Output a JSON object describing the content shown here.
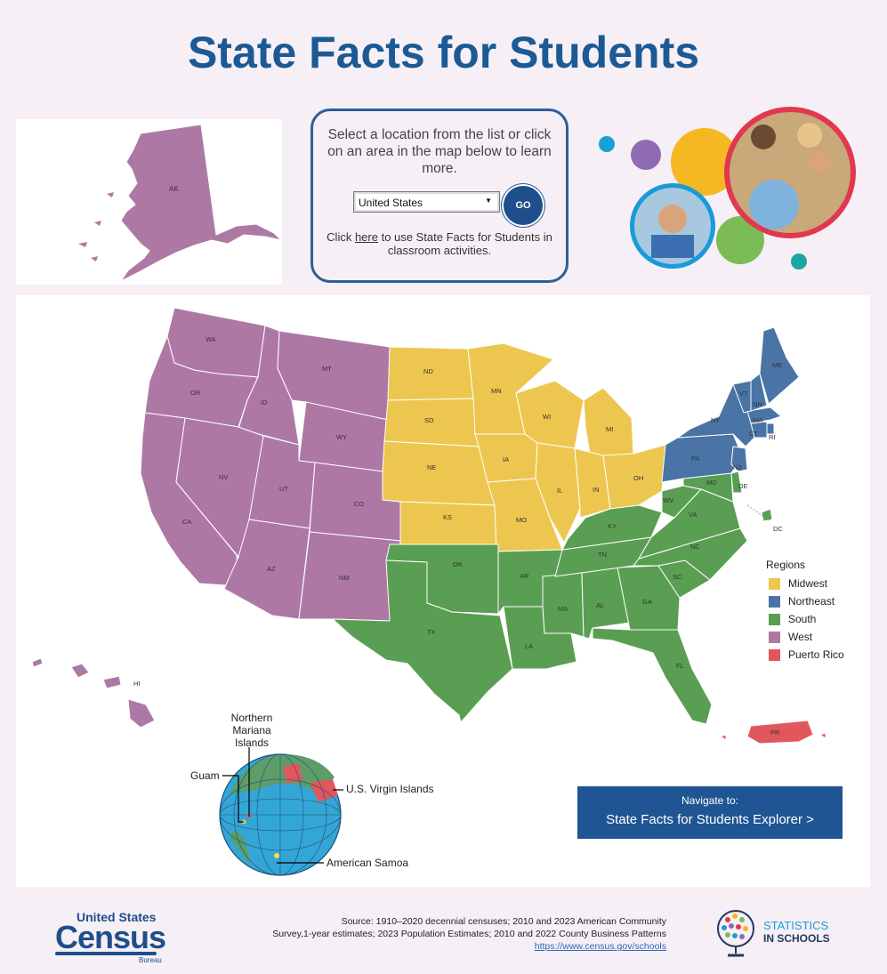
{
  "page": {
    "title": "State Facts for Students"
  },
  "selector": {
    "prompt": "Select a location from the list or click on an area in the map below to learn more.",
    "selected": "United States",
    "go_label": "GO",
    "classroom_before": "Click ",
    "classroom_link": "here",
    "classroom_after": " to use State Facts for Students in classroom activities."
  },
  "map": {
    "state_labels": [
      "AK",
      "WA",
      "OR",
      "CA",
      "ID",
      "NV",
      "MT",
      "WY",
      "UT",
      "AZ",
      "CO",
      "NM",
      "ND",
      "SD",
      "NE",
      "KS",
      "OK",
      "TX",
      "MN",
      "IA",
      "MO",
      "AR",
      "LA",
      "WI",
      "IL",
      "MI",
      "IN",
      "OH",
      "KY",
      "TN",
      "MS",
      "AL",
      "GA",
      "FL",
      "SC",
      "NC",
      "VA",
      "WV",
      "MD",
      "DE",
      "NJ",
      "PA",
      "NY",
      "CT",
      "RI",
      "MA",
      "VT",
      "NH",
      "ME",
      "DC",
      "HI",
      "PR"
    ],
    "island_labels": {
      "cnmi": "Northern Mariana Islands",
      "guam": "Guam",
      "usvi": "U.S. Virgin Islands",
      "samoa": "American Samoa"
    }
  },
  "legend": {
    "title": "Regions",
    "items": [
      {
        "label": "Midwest",
        "color": "#ecc64f"
      },
      {
        "label": "Northeast",
        "color": "#4a74a6"
      },
      {
        "label": "South",
        "color": "#5a9e53"
      },
      {
        "label": "West",
        "color": "#ad79a4"
      },
      {
        "label": "Puerto Rico",
        "color": "#e2565d"
      }
    ]
  },
  "navigate": {
    "label": "Navigate to:",
    "link": "State Facts for Students Explorer >"
  },
  "footer": {
    "census_line1": "United States",
    "census_line2": "Census",
    "census_line3": "Bureau",
    "source_line1": "Source: 1910–2020 decennial censuses; 2010 and 2023 American Community",
    "source_line2": "Survey,1-year estimates; 2023 Population Estimates; 2010 and 2022 County Business Patterns",
    "source_url": "https://www.census.gov/schools",
    "sis_line1": "STATISTICS",
    "sis_line2": "IN SCHOOLS"
  },
  "colors": {
    "title": "#1b5a94",
    "midwest": "#ecc64f",
    "northeast": "#4a74a6",
    "south": "#5a9e53",
    "west": "#ad79a4",
    "puerto_rico": "#e2565d",
    "nav_bg": "#1f5592"
  }
}
